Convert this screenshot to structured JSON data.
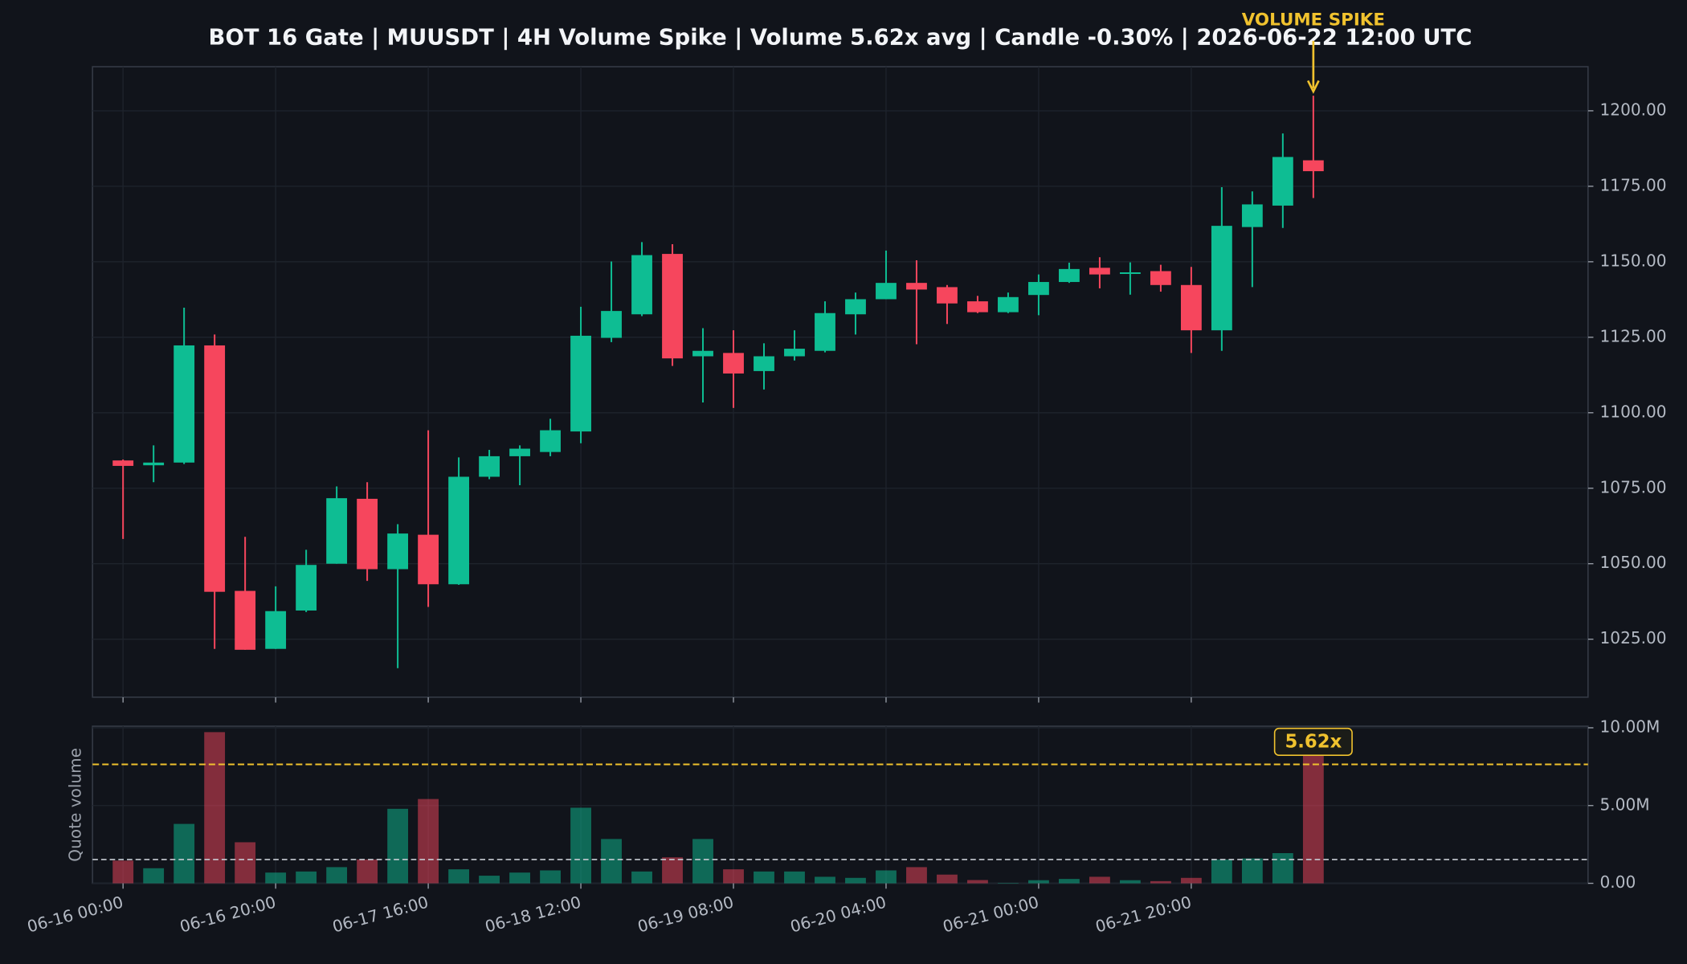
{
  "chart_data": [
    {
      "type": "candlestick",
      "title": "BOT 16 Gate | MUUSDT | 4H Volume Spike | Volume 5.62x avg | Candle -0.30% | 2026-06-22 12:00 UTC",
      "annotation": "VOLUME SPIKE",
      "up_color": "#0ebd93",
      "down_color": "#f6465d",
      "open": [
        1084.2,
        1082.6,
        1083.5,
        1122.3,
        1041.0,
        1021.8,
        1034.5,
        1050.0,
        1071.5,
        1048.2,
        1059.6,
        1043.2,
        1078.8,
        1085.6,
        1087.0,
        1093.8,
        1124.8,
        1132.6,
        1152.6,
        1118.7,
        1119.8,
        1113.8,
        1118.7,
        1120.5,
        1132.6,
        1137.6,
        1143.0,
        1141.6,
        1136.9,
        1133.3,
        1139.0,
        1143.3,
        1148.0,
        1146.0,
        1146.9,
        1142.3,
        1127.3,
        1161.5,
        1168.6,
        1183.6
      ],
      "high": [
        1084.5,
        1089.2,
        1134.8,
        1125.9,
        1058.9,
        1042.5,
        1054.6,
        1075.6,
        1077.0,
        1063.1,
        1094.2,
        1085.2,
        1087.7,
        1089.2,
        1098.0,
        1135.1,
        1150.1,
        1156.5,
        1155.8,
        1128.0,
        1127.3,
        1123.0,
        1127.3,
        1136.9,
        1139.8,
        1153.7,
        1150.5,
        1142.3,
        1138.7,
        1139.8,
        1145.8,
        1149.7,
        1151.5,
        1149.8,
        1149.0,
        1148.3,
        1174.7,
        1173.3,
        1192.5,
        1205.0
      ],
      "low": [
        1058.2,
        1077.0,
        1083.0,
        1021.8,
        1021.5,
        1021.8,
        1034.0,
        1050.0,
        1044.3,
        1015.4,
        1035.7,
        1043.0,
        1078.0,
        1076.0,
        1085.6,
        1089.9,
        1123.4,
        1132.0,
        1115.5,
        1103.4,
        1101.6,
        1107.7,
        1117.3,
        1120.0,
        1125.9,
        1137.6,
        1122.7,
        1129.4,
        1133.0,
        1133.0,
        1132.3,
        1143.0,
        1141.2,
        1139.1,
        1140.1,
        1119.8,
        1120.5,
        1141.6,
        1161.2,
        1171.1
      ],
      "close": [
        1082.4,
        1083.5,
        1122.3,
        1040.7,
        1021.5,
        1034.3,
        1049.6,
        1071.7,
        1048.2,
        1060.0,
        1043.2,
        1078.8,
        1085.6,
        1088.1,
        1094.2,
        1125.5,
        1133.7,
        1152.2,
        1118.0,
        1120.5,
        1113.0,
        1118.7,
        1121.2,
        1133.0,
        1137.6,
        1143.0,
        1140.8,
        1136.2,
        1133.3,
        1138.3,
        1143.3,
        1147.6,
        1145.8,
        1146.5,
        1142.3,
        1127.3,
        1161.9,
        1169.0,
        1184.7,
        1180.0
      ],
      "xlim": [
        -1,
        48
      ],
      "ylim": [
        1005.8,
        1214.6
      ],
      "yticks": [
        {
          "value": 1025,
          "label": "1025.00"
        },
        {
          "value": 1050,
          "label": "1050.00"
        },
        {
          "value": 1075,
          "label": "1075.00"
        },
        {
          "value": 1100,
          "label": "1100.00"
        },
        {
          "value": 1125,
          "label": "1125.00"
        },
        {
          "value": 1150,
          "label": "1150.00"
        },
        {
          "value": 1175,
          "label": "1175.00"
        },
        {
          "value": 1200,
          "label": "1200.00"
        }
      ],
      "grid": true
    },
    {
      "type": "bar",
      "y_label": "Quote volume",
      "badge": "5.62x",
      "up_color": "#0ebd93",
      "down_color": "#f6465d",
      "categories": [
        "06-16 00:00",
        null,
        null,
        null,
        null,
        "06-16 20:00",
        null,
        null,
        null,
        null,
        "06-17 16:00",
        null,
        null,
        null,
        null,
        "06-18 12:00",
        null,
        null,
        null,
        null,
        "06-19 08:00",
        null,
        null,
        null,
        null,
        "06-20 04:00",
        null,
        null,
        null,
        null,
        "06-21 00:00",
        null,
        null,
        null,
        null,
        "06-21 20:00",
        null,
        null,
        null,
        null
      ],
      "values": [
        1.46,
        0.97,
        3.82,
        9.72,
        2.64,
        0.69,
        0.76,
        1.04,
        1.53,
        4.79,
        5.42,
        0.9,
        0.49,
        0.69,
        0.83,
        4.86,
        2.85,
        0.76,
        1.67,
        2.85,
        0.9,
        0.76,
        0.76,
        0.42,
        0.35,
        0.83,
        1.04,
        0.56,
        0.21,
        0.03,
        0.2,
        0.28,
        0.42,
        0.2,
        0.14,
        0.35,
        1.53,
        1.6,
        1.94,
        8.6
      ],
      "avg_line": 1.53,
      "spike_line": 7.65,
      "xlim": [
        -1,
        48
      ],
      "ylim": [
        0,
        10.1
      ],
      "yticks": [
        {
          "value": 0,
          "label": "0.00"
        },
        {
          "value": 5,
          "label": "5.00M"
        },
        {
          "value": 10,
          "label": "10.00M"
        }
      ],
      "grid": true
    }
  ]
}
